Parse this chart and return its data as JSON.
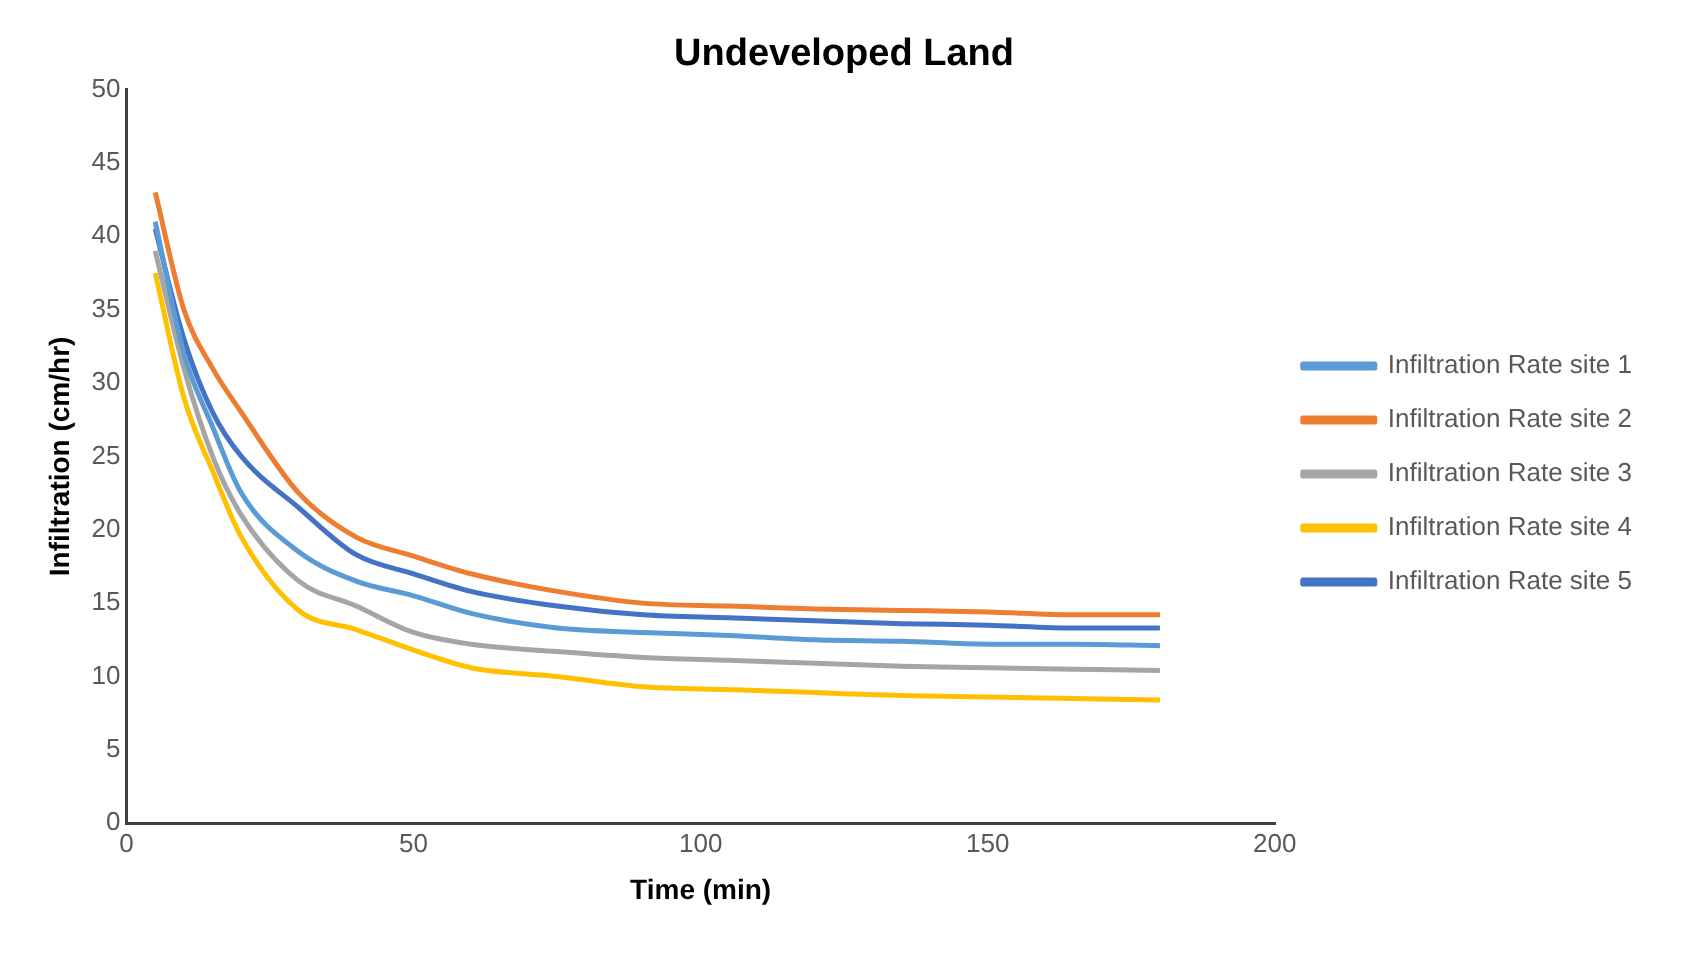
{
  "chart_data": {
    "type": "line",
    "title": "Undeveloped Land",
    "xlabel": "Time (min)",
    "ylabel": "Infiltration (cm/hr)",
    "x": [
      5,
      10,
      15,
      20,
      30,
      40,
      50,
      60,
      75,
      90,
      105,
      120,
      135,
      150,
      165,
      180
    ],
    "xlim": [
      0,
      200
    ],
    "xticks": [
      0,
      50,
      100,
      150,
      200
    ],
    "ylim": [
      0,
      50
    ],
    "yticks": [
      0,
      5,
      10,
      15,
      20,
      25,
      30,
      35,
      40,
      45,
      50
    ],
    "grid": false,
    "legend": "right",
    "marker": "none",
    "line_style": "solid",
    "series": [
      {
        "name": "Infiltration Rate site 1",
        "color": "#5b9bd5",
        "values": [
          41,
          32,
          27,
          22.5,
          18.5,
          16.5,
          15.5,
          14.3,
          13.3,
          13,
          12.8,
          12.5,
          12.4,
          12.2,
          12.2,
          12.1
        ]
      },
      {
        "name": "Infiltration Rate site 2",
        "color": "#ed7d31",
        "values": [
          43,
          35,
          31,
          28,
          22.5,
          19.5,
          18.2,
          17,
          15.8,
          15,
          14.8,
          14.6,
          14.5,
          14.4,
          14.2,
          14.2
        ]
      },
      {
        "name": "Infiltration Rate site 3",
        "color": "#a5a5a5",
        "values": [
          39,
          31,
          25,
          21,
          16.5,
          14.8,
          13,
          12.2,
          11.7,
          11.3,
          11.1,
          10.9,
          10.7,
          10.6,
          10.5,
          10.4
        ]
      },
      {
        "name": "Infiltration Rate site 4",
        "color": "#ffc000",
        "values": [
          37.5,
          29,
          24,
          19.5,
          14.5,
          13.2,
          11.8,
          10.6,
          10,
          9.3,
          9.1,
          8.9,
          8.7,
          8.6,
          8.5,
          8.4
        ]
      },
      {
        "name": "Infiltration Rate site 5",
        "color": "#4472c4",
        "values": [
          40.5,
          33,
          28,
          25,
          21.5,
          18.3,
          17,
          15.8,
          14.8,
          14.2,
          14,
          13.8,
          13.6,
          13.5,
          13.3,
          13.3
        ]
      }
    ]
  }
}
